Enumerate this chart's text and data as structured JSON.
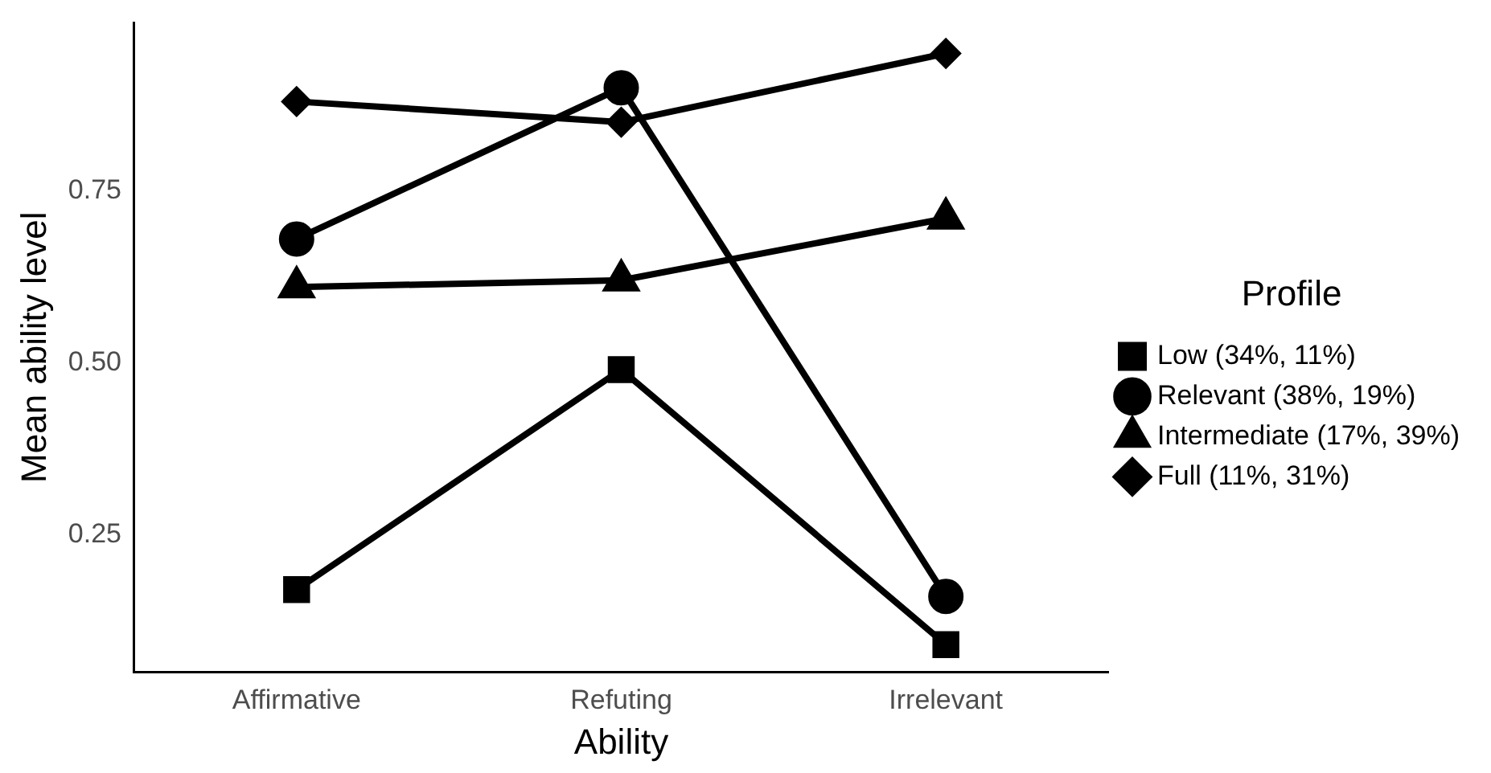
{
  "chart_data": {
    "type": "line",
    "xlabel": "Ability",
    "ylabel": "Mean ability level",
    "legend_title": "Profile",
    "legend": "right",
    "grid": false,
    "categories": [
      "Affirmative",
      "Refuting",
      "Irrelevant"
    ],
    "ylim": [
      0.05,
      0.995
    ],
    "yticks": [
      {
        "value": 0.25,
        "label": "0.25"
      },
      {
        "value": 0.5,
        "label": "0.50"
      },
      {
        "value": 0.75,
        "label": "0.75"
      }
    ],
    "series": [
      {
        "name": "Low (34%, 11%)",
        "color": "#000000",
        "marker": "square",
        "values": [
          0.17,
          0.49,
          0.09
        ]
      },
      {
        "name": "Relevant (38%, 19%)",
        "color": "#000000",
        "marker": "circle",
        "values": [
          0.68,
          0.9,
          0.16
        ]
      },
      {
        "name": "Intermediate (17%, 39%)",
        "color": "#000000",
        "marker": "triangle",
        "values": [
          0.61,
          0.62,
          0.71
        ]
      },
      {
        "name": "Full (11%, 31%)",
        "color": "#000000",
        "marker": "diamond",
        "values": [
          0.88,
          0.85,
          0.95
        ]
      }
    ]
  }
}
